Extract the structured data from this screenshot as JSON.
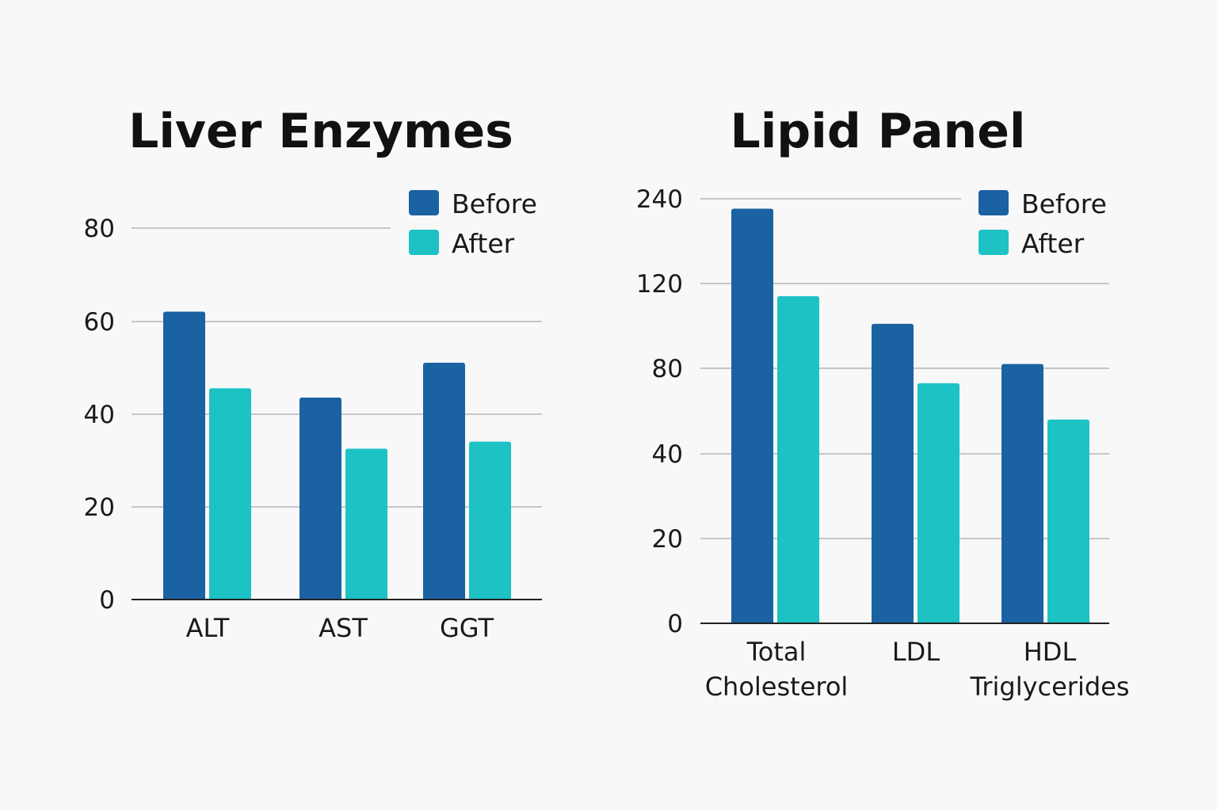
{
  "colors": {
    "before": "#1a62a2",
    "after": "#1dc2c4",
    "background": "#f8f8f8"
  },
  "chart_data": [
    {
      "type": "bar",
      "title": "Liver Enzymes",
      "xlabel": "",
      "ylabel": "",
      "ylim": [
        0,
        80
      ],
      "yticks": [
        "0",
        "20",
        "40",
        "60",
        "80"
      ],
      "categories": [
        [
          "ALT"
        ],
        [
          "AST"
        ],
        [
          "GGT"
        ]
      ],
      "series": [
        {
          "name": "Before",
          "values": [
            62,
            43.5,
            51
          ]
        },
        {
          "name": "After",
          "values": [
            45.5,
            32.5,
            34
          ]
        }
      ],
      "legend_position": "top-right",
      "grid": true
    },
    {
      "type": "bar",
      "title": "Lipid Panel",
      "xlabel": "",
      "ylabel": "",
      "ylim": [
        0,
        240
      ],
      "yticks": [
        "0",
        "20",
        "40",
        "80",
        "120",
        "240"
      ],
      "categories": [
        [
          "Total",
          "Cholesterol"
        ],
        [
          "LDL"
        ],
        [
          "HDL",
          "Triglycerides"
        ]
      ],
      "series": [
        {
          "name": "Before",
          "values": [
            226,
            101,
            82
          ]
        },
        {
          "name": "After",
          "values": [
            114,
            73,
            56
          ]
        }
      ],
      "legend_position": "top-right",
      "grid": true,
      "axis_scale_note": "tick labels are unevenly spaced as printed"
    }
  ]
}
